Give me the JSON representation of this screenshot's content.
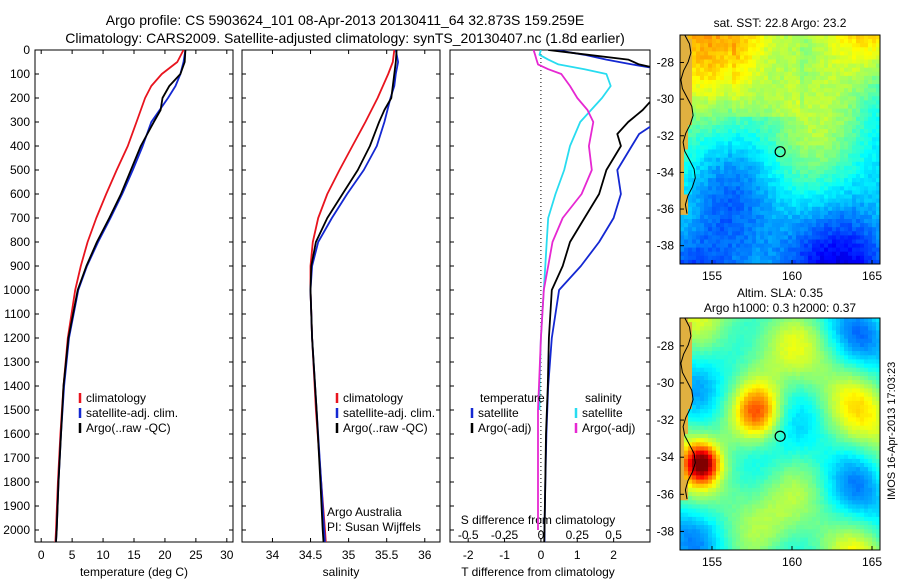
{
  "header": {
    "line1": "Argo profile: CS 5903624_101 08-Apr-2013 20130411_64 32.873S 159.259E",
    "line2": "Climatology: CARS2009. Satellite-adjusted climatology: synTS_20130407.nc (1.8d earlier)"
  },
  "side_credit": "IMOS 16-Apr-2013 17:03:23",
  "colors": {
    "red": "#e8141e",
    "blue": "#1428d2",
    "black": "#000000",
    "cyan": "#28dcf0",
    "magenta": "#e628d2"
  },
  "chart_data": [
    {
      "type": "line",
      "name": "temperature",
      "xlabel": "temperature (deg C)",
      "ylim": [
        2050,
        0
      ],
      "xlim": [
        -1,
        31
      ],
      "xticks": [
        0,
        5,
        10,
        15,
        20,
        25,
        30
      ],
      "yticks": [
        0,
        100,
        200,
        300,
        400,
        500,
        600,
        700,
        800,
        900,
        1000,
        1100,
        1200,
        1300,
        1400,
        1500,
        1600,
        1700,
        1800,
        1900,
        2000
      ],
      "legend": [
        "climatology",
        "satellite-adj. clim.",
        "Argo(..raw -QC)"
      ],
      "series": [
        {
          "name": "climatology",
          "color": "red",
          "depth": [
            0,
            50,
            100,
            150,
            200,
            300,
            400,
            500,
            600,
            700,
            800,
            900,
            1000,
            1200,
            1400,
            1600,
            1800,
            2000,
            2050
          ],
          "values": [
            23,
            22,
            19.5,
            17.8,
            16.8,
            15.4,
            14,
            12.2,
            10.5,
            8.9,
            7.5,
            6.4,
            5.5,
            4.3,
            3.6,
            3.1,
            2.7,
            2.4,
            2.3
          ]
        },
        {
          "name": "satellite-adj. clim.",
          "color": "blue",
          "depth": [
            0,
            50,
            100,
            150,
            200,
            300,
            400,
            500,
            600,
            700,
            800,
            900,
            1000,
            1200,
            1400,
            1600,
            1800,
            2000,
            2050
          ],
          "values": [
            23.3,
            23,
            22.5,
            21.7,
            20.5,
            17.8,
            16.4,
            14.8,
            13.1,
            11.2,
            9.2,
            7.4,
            6,
            4.5,
            3.7,
            3.2,
            2.8,
            2.5,
            2.4
          ]
        },
        {
          "name": "Argo(..raw -QC)",
          "color": "black",
          "depth": [
            0,
            50,
            100,
            150,
            200,
            250,
            300,
            400,
            500,
            600,
            700,
            800,
            900,
            1000,
            1200,
            1400,
            1600,
            1800,
            2000,
            2050
          ],
          "values": [
            23.3,
            23.2,
            22.5,
            20.7,
            19.6,
            19.3,
            18.2,
            16.1,
            14.5,
            12.9,
            11,
            9,
            7.3,
            5.9,
            4.4,
            3.6,
            3.2,
            2.8,
            2.5,
            2.4
          ]
        }
      ]
    },
    {
      "type": "line",
      "name": "salinity",
      "xlabel": "salinity",
      "ylim": [
        2050,
        0
      ],
      "xlim": [
        33.6,
        36.2
      ],
      "xticks": [
        34,
        34.5,
        35,
        35.5,
        36
      ],
      "legend": [
        "climatology",
        "satellite-adj. clim.",
        "Argo(..raw -QC)"
      ],
      "annotation": [
        "Argo Australia",
        "PI: Susan Wijffels"
      ],
      "series": [
        {
          "name": "climatology",
          "color": "red",
          "depth": [
            0,
            50,
            100,
            150,
            200,
            300,
            400,
            500,
            600,
            700,
            800,
            900,
            1000,
            1200,
            1500,
            1800,
            2000,
            2050
          ],
          "values": [
            35.6,
            35.58,
            35.52,
            35.45,
            35.38,
            35.22,
            35.05,
            34.88,
            34.72,
            34.6,
            34.53,
            34.5,
            34.5,
            34.52,
            34.57,
            34.64,
            34.69,
            34.7
          ]
        },
        {
          "name": "satellite-adj. clim.",
          "color": "blue",
          "depth": [
            0,
            50,
            100,
            150,
            200,
            300,
            400,
            500,
            600,
            700,
            800,
            900,
            1000,
            1200,
            1500,
            1800,
            2000,
            2050
          ],
          "values": [
            35.62,
            35.65,
            35.62,
            35.6,
            35.55,
            35.47,
            35.37,
            35.2,
            34.98,
            34.78,
            34.6,
            34.52,
            34.5,
            34.52,
            34.58,
            34.64,
            34.68,
            34.69
          ]
        },
        {
          "name": "Argo(..raw -QC)",
          "color": "black",
          "depth": [
            0,
            50,
            100,
            150,
            200,
            250,
            300,
            400,
            500,
            600,
            700,
            800,
            900,
            1000,
            1200,
            1500,
            1800,
            2000,
            2050
          ],
          "values": [
            35.63,
            35.62,
            35.6,
            35.58,
            35.56,
            35.47,
            35.4,
            35.28,
            35.12,
            34.92,
            34.72,
            34.57,
            34.51,
            34.5,
            34.52,
            34.58,
            34.63,
            34.66,
            34.67
          ]
        }
      ]
    },
    {
      "type": "line",
      "name": "differences",
      "xlabel_top": "S difference from climatology",
      "xticks_top": [
        -0.5,
        -0.25,
        0,
        0.25,
        0.5
      ],
      "xlabel": "T difference from climatology",
      "xticks": [
        -2,
        -1,
        0,
        1,
        2
      ],
      "xlim": [
        -2.5,
        3
      ],
      "ylim": [
        2050,
        0
      ],
      "legend_title_left": "temperature",
      "legend_title_right": "salinity",
      "legend_left": [
        "satellite",
        "Argo(-adj)"
      ],
      "legend_right": [
        "satellite",
        "Argo(-adj)"
      ],
      "series": [
        {
          "name": "T satellite",
          "color": "blue",
          "depth": [
            0,
            20,
            40,
            60,
            80,
            100,
            150,
            200,
            250,
            300,
            350,
            400,
            500,
            600,
            700,
            800,
            900,
            1000,
            1200,
            1400,
            1600,
            1800,
            2000,
            2050
          ],
          "values": [
            0.4,
            1.2,
            1.8,
            2.5,
            3.3,
            3.8,
            3.9,
            3.8,
            3.5,
            3.2,
            2.7,
            2.5,
            2.1,
            2.2,
            2.0,
            1.6,
            1.1,
            0.5,
            0.3,
            0.2,
            0.15,
            0.12,
            0.1,
            0.1
          ]
        },
        {
          "name": "T Argo",
          "color": "black",
          "depth": [
            0,
            20,
            40,
            60,
            80,
            100,
            150,
            200,
            250,
            300,
            350,
            400,
            500,
            600,
            700,
            800,
            900,
            1000,
            1200,
            1400,
            1600,
            1800,
            2000,
            2050
          ],
          "values": [
            0.2,
            1.3,
            2.4,
            2.7,
            3.3,
            3.0,
            3.3,
            3.1,
            2.8,
            2.4,
            2.1,
            2.2,
            1.8,
            1.6,
            1.2,
            0.8,
            0.6,
            0.3,
            0.22,
            0.19,
            0.14,
            0.12,
            0.1,
            0.09
          ]
        },
        {
          "name": "S satellite",
          "color": "cyan",
          "depth": [
            0,
            20,
            40,
            60,
            80,
            100,
            150,
            200,
            300,
            400,
            500,
            600,
            700,
            800,
            900,
            1000,
            1200,
            1400,
            1500
          ],
          "values": [
            0.0,
            -0.01,
            0.05,
            0.12,
            0.3,
            0.45,
            0.48,
            0.42,
            0.27,
            0.2,
            0.16,
            0.1,
            0.05,
            0.04,
            0.03,
            0.02,
            0.0,
            -0.01,
            -0.01
          ]
        },
        {
          "name": "S Argo",
          "color": "magenta",
          "depth": [
            0,
            20,
            40,
            60,
            80,
            100,
            150,
            200,
            250,
            300,
            400,
            500,
            600,
            700,
            800,
            900,
            1000,
            1200,
            1500,
            1800,
            2000
          ],
          "values": [
            -0.05,
            -0.04,
            -0.03,
            -0.02,
            0.05,
            0.14,
            0.2,
            0.25,
            0.32,
            0.36,
            0.33,
            0.35,
            0.28,
            0.15,
            0.08,
            0.05,
            0.02,
            0.0,
            -0.02,
            -0.02,
            -0.02
          ]
        }
      ]
    },
    {
      "type": "heatmap",
      "name": "sst-map",
      "title": "sat. SST: 22.8 Argo: 23.2",
      "xticks": [
        155,
        160,
        165
      ],
      "yticks": [
        -28,
        -30,
        -32,
        -34,
        -36,
        -38
      ],
      "xlim": [
        153,
        165.5
      ],
      "ylim": [
        -39,
        -26.5
      ],
      "marker": {
        "lon": 159.26,
        "lat": -32.87
      }
    },
    {
      "type": "heatmap",
      "name": "sla-map",
      "title_line1": "Altim. SLA: 0.35",
      "title_line2": "Argo h1000: 0.3 h2000: 0.37",
      "xticks": [
        155,
        160,
        165
      ],
      "yticks": [
        -28,
        -30,
        -32,
        -34,
        -36,
        -38
      ],
      "xlim": [
        153,
        165.5
      ],
      "ylim": [
        -39,
        -26.5
      ],
      "marker": {
        "lon": 159.26,
        "lat": -32.87
      }
    }
  ]
}
